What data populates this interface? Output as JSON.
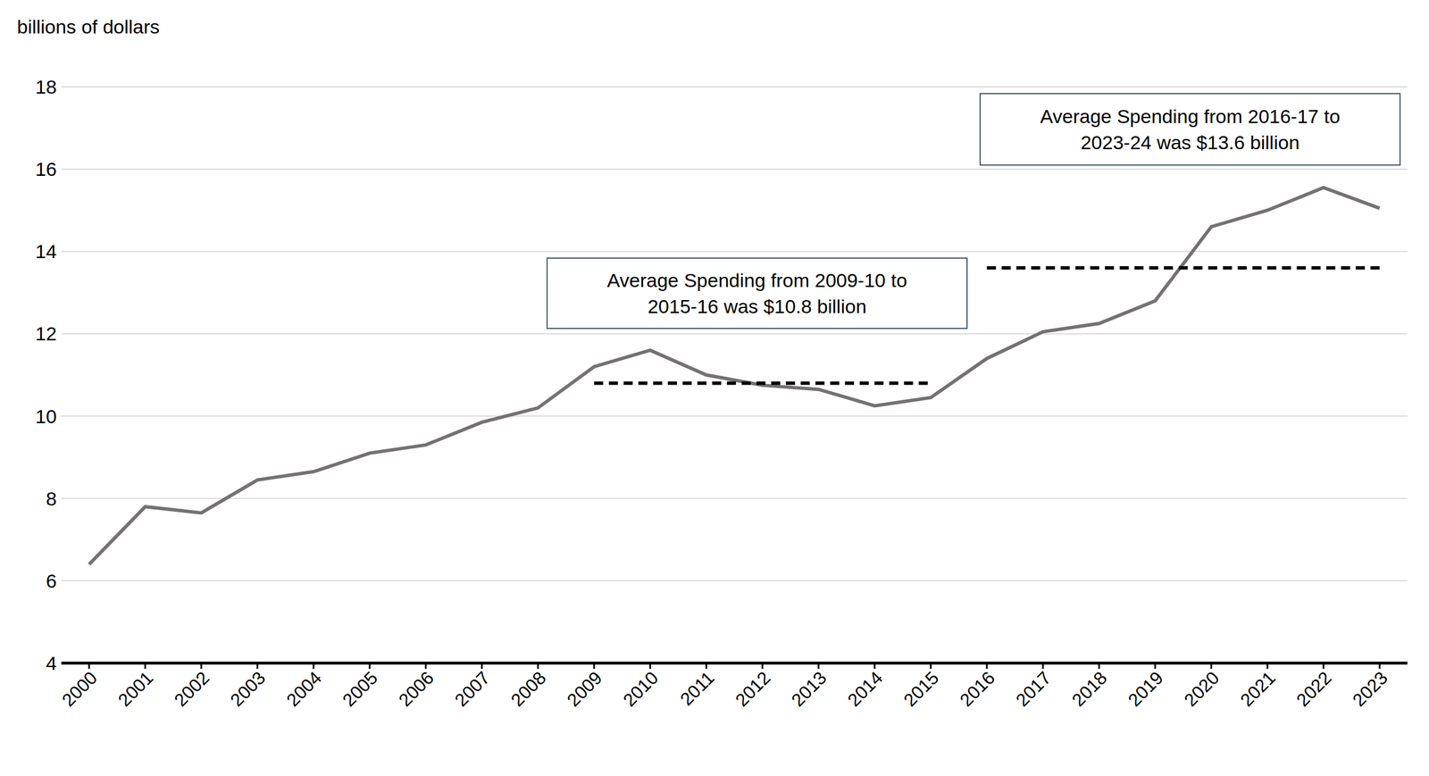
{
  "chart_data": {
    "type": "line",
    "y_label": "billions of dollars",
    "categories": [
      "2000",
      "2001",
      "2002",
      "2003",
      "2004",
      "2005",
      "2006",
      "2007",
      "2008",
      "2009",
      "2010",
      "2011",
      "2012",
      "2013",
      "2014",
      "2015",
      "2016",
      "2017",
      "2018",
      "2019",
      "2020",
      "2021",
      "2022",
      "2023"
    ],
    "values": [
      6.4,
      7.8,
      7.65,
      8.45,
      8.65,
      9.1,
      9.3,
      9.85,
      10.2,
      11.2,
      11.6,
      11.0,
      10.75,
      10.65,
      10.25,
      10.45,
      11.4,
      12.05,
      12.25,
      12.8,
      14.6,
      15.0,
      15.55,
      15.05
    ],
    "color": "#767171",
    "ylim": [
      4,
      18
    ],
    "yticks": [
      4,
      6,
      8,
      10,
      12,
      14,
      16,
      18
    ],
    "grid": true,
    "annotations": [
      {
        "text": "Average Spending from 2009-10 to\n2015-16 was $10.8 billion",
        "value": 10.8,
        "x_start": "2009",
        "x_end": "2015",
        "color": "#000000",
        "line_style": "dashed"
      },
      {
        "text": "Average Spending from 2016-17 to\n2023-24 was $13.6 billion",
        "value": 13.6,
        "x_start": "2016",
        "x_end": "2023",
        "color": "#000000",
        "line_style": "dashed"
      }
    ]
  }
}
